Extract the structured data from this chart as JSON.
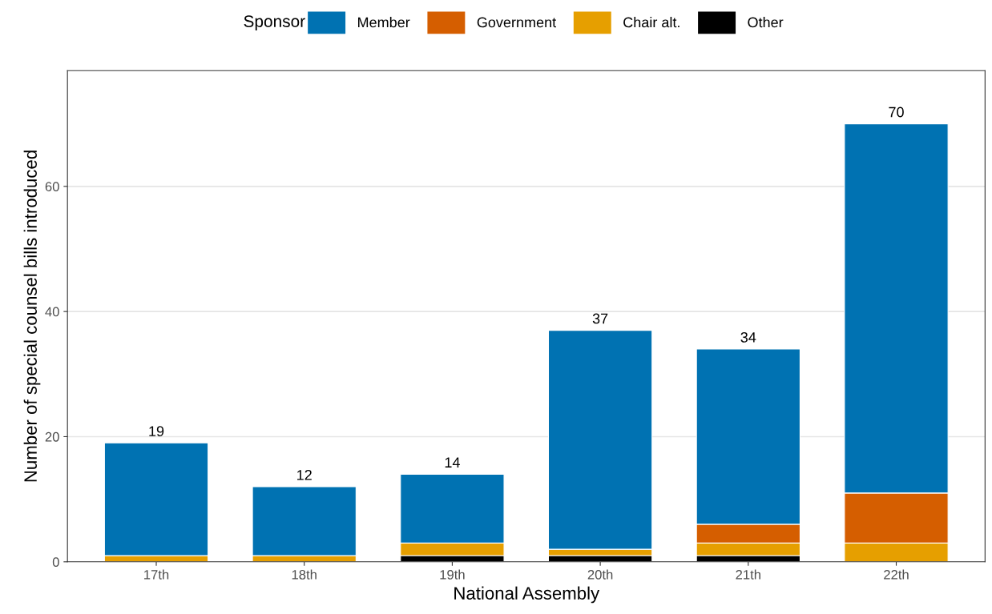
{
  "chart_data": {
    "type": "bar",
    "stacked": true,
    "xlabel": "National Assembly",
    "ylabel": "Number of special counsel bills introduced",
    "legend_title": "Sponsor",
    "legend": "top",
    "categories": [
      "17th",
      "18th",
      "19th",
      "20th",
      "21th",
      "22th"
    ],
    "series": [
      {
        "name": "Other",
        "color": "#000000",
        "values": [
          0,
          0,
          1,
          1,
          1,
          0
        ]
      },
      {
        "name": "Chair alt.",
        "color": "#e69f00",
        "values": [
          1,
          1,
          2,
          1,
          2,
          3
        ]
      },
      {
        "name": "Government",
        "color": "#d55e00",
        "values": [
          0,
          0,
          0,
          0,
          3,
          8
        ]
      },
      {
        "name": "Member",
        "color": "#0072b2",
        "values": [
          18,
          11,
          11,
          35,
          28,
          59
        ]
      }
    ],
    "totals": [
      "19",
      "12",
      "14",
      "37",
      "34",
      "70"
    ],
    "ylim": [
      0,
      78.5
    ],
    "yticks": [
      0,
      20,
      40,
      60
    ],
    "grid": "y"
  }
}
